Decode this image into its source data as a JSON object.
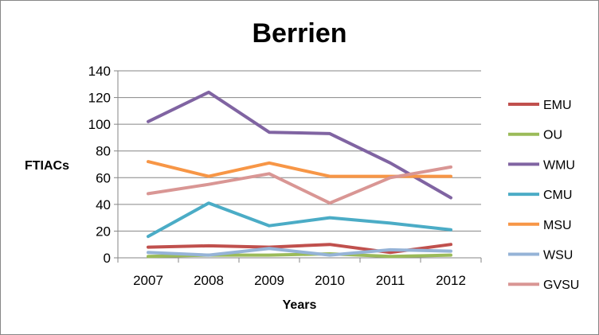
{
  "chart_data": {
    "type": "line",
    "title": "Berrien",
    "xlabel": "Years",
    "ylabel": "FTIACs",
    "x": [
      "2007",
      "2008",
      "2009",
      "2010",
      "2011",
      "2012"
    ],
    "ylim": [
      0,
      140
    ],
    "yticks": [
      0,
      20,
      40,
      60,
      80,
      100,
      120,
      140
    ],
    "grid": true,
    "legend": "right",
    "series": [
      {
        "name": "EMU",
        "color": "#C0504D",
        "values": [
          8,
          9,
          8,
          10,
          4,
          10
        ]
      },
      {
        "name": "OU",
        "color": "#9BBB59",
        "values": [
          1,
          2,
          2,
          3,
          1,
          2
        ]
      },
      {
        "name": "WMU",
        "color": "#8064A2",
        "values": [
          102,
          124,
          94,
          93,
          71,
          45
        ]
      },
      {
        "name": "CMU",
        "color": "#4BACC6",
        "values": [
          16,
          41,
          24,
          30,
          26,
          21
        ]
      },
      {
        "name": "MSU",
        "color": "#F79646",
        "values": [
          72,
          61,
          71,
          61,
          61,
          61
        ]
      },
      {
        "name": "WSU",
        "color": "#95B3D7",
        "values": [
          4,
          2,
          7,
          2,
          6,
          5
        ]
      },
      {
        "name": "GVSU",
        "color": "#D99694",
        "values": [
          48,
          55,
          63,
          41,
          60,
          68
        ]
      }
    ]
  }
}
